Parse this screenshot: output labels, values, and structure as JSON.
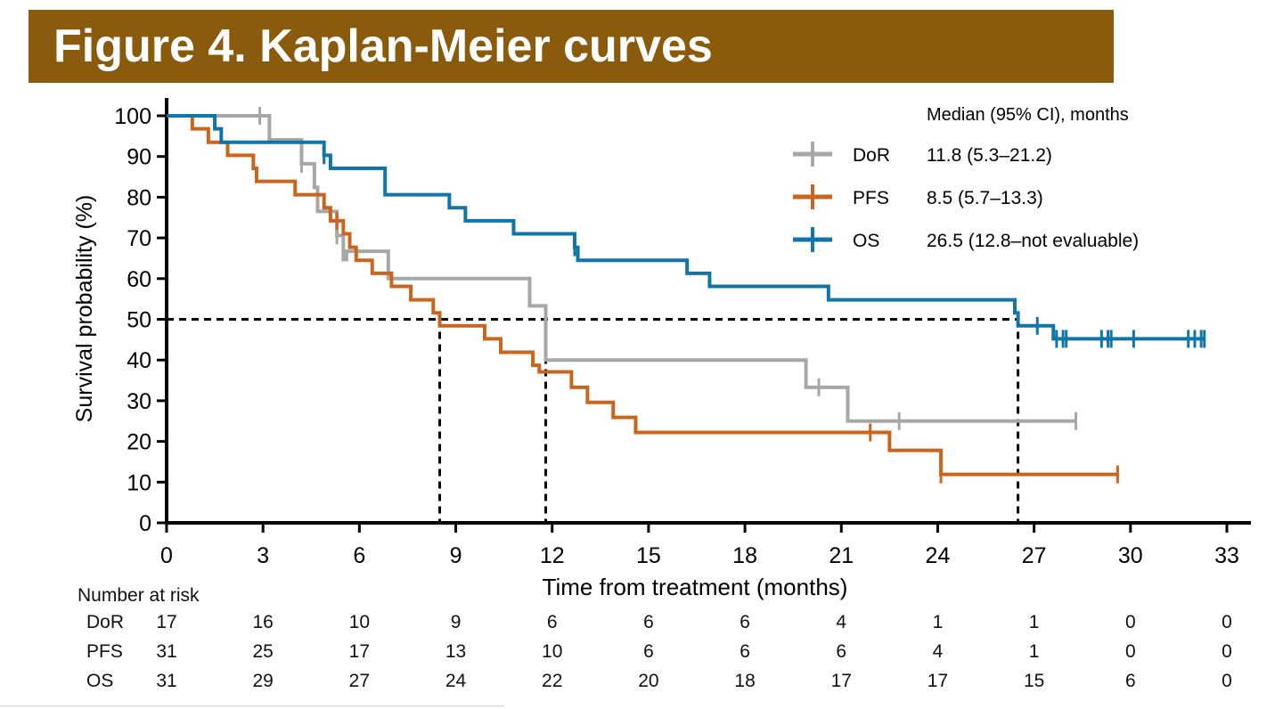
{
  "banner": {
    "title": "Figure 4. Kaplan-Meier curves",
    "color": "#8a5b0c"
  },
  "chart_data": {
    "type": "line",
    "subtype": "kaplan-meier step",
    "xlabel": "Time from treatment (months)",
    "ylabel": "Survival probability (%)",
    "xlim": [
      0,
      33
    ],
    "ylim": [
      0,
      100
    ],
    "xticks": [
      0,
      3,
      6,
      9,
      12,
      15,
      18,
      21,
      24,
      27,
      30,
      33
    ],
    "yticks": [
      0,
      10,
      20,
      30,
      40,
      50,
      60,
      70,
      80,
      90,
      100
    ],
    "grid": false,
    "legend": {
      "placement": "top-right",
      "header": "Median (95% CI), months",
      "entries": [
        {
          "name": "DoR",
          "text": "11.8 (5.3–21.2)"
        },
        {
          "name": "PFS",
          "text": "8.5 (5.7–13.3)"
        },
        {
          "name": "OS",
          "text": "26.5 (12.8–not evaluable)"
        }
      ]
    },
    "median_reference": {
      "y": 50,
      "x_values": [
        8.5,
        11.8,
        26.5
      ]
    },
    "series": [
      {
        "name": "DoR",
        "color": "#a7a7a7",
        "steps": [
          [
            0,
            100
          ],
          [
            3.2,
            94.1
          ],
          [
            4.2,
            88.2
          ],
          [
            4.6,
            82.4
          ],
          [
            4.7,
            76.5
          ],
          [
            5.3,
            70.6
          ],
          [
            5.5,
            64.7
          ],
          [
            5.6,
            66.7
          ],
          [
            6.9,
            60
          ],
          [
            11.3,
            53.3
          ],
          [
            11.8,
            40
          ],
          [
            19.9,
            33.3
          ],
          [
            21.2,
            25
          ],
          [
            28.3,
            25
          ]
        ],
        "censored": [
          2.9,
          4.2,
          5.3,
          20.3,
          22.8,
          28.3
        ]
      },
      {
        "name": "PFS",
        "color": "#c9651c",
        "steps": [
          [
            0,
            100
          ],
          [
            0.8,
            96.8
          ],
          [
            1.3,
            93.5
          ],
          [
            1.9,
            90.3
          ],
          [
            2.7,
            87.1
          ],
          [
            2.8,
            83.9
          ],
          [
            4.0,
            80.6
          ],
          [
            4.9,
            77.4
          ],
          [
            5.1,
            74.2
          ],
          [
            5.5,
            71
          ],
          [
            5.7,
            67.7
          ],
          [
            5.9,
            64.5
          ],
          [
            6.4,
            61.3
          ],
          [
            7.0,
            58.1
          ],
          [
            7.6,
            54.8
          ],
          [
            8.3,
            51.6
          ],
          [
            8.5,
            48.4
          ],
          [
            9.9,
            45.2
          ],
          [
            10.4,
            41.9
          ],
          [
            11.4,
            38.7
          ],
          [
            11.6,
            37.1
          ],
          [
            12.6,
            33.3
          ],
          [
            13.1,
            29.6
          ],
          [
            13.9,
            25.9
          ],
          [
            14.6,
            22.2
          ],
          [
            22.5,
            17.8
          ],
          [
            24.1,
            11.9
          ],
          [
            29.6,
            11.9
          ]
        ],
        "censored": [
          5.3,
          21.9,
          24.1,
          29.6
        ]
      },
      {
        "name": "OS",
        "color": "#1275a8",
        "steps": [
          [
            0,
            100
          ],
          [
            1.5,
            96.8
          ],
          [
            1.7,
            93.5
          ],
          [
            4.9,
            90.3
          ],
          [
            5.1,
            87.1
          ],
          [
            6.8,
            80.6
          ],
          [
            8.8,
            77.4
          ],
          [
            9.3,
            74.2
          ],
          [
            10.8,
            71
          ],
          [
            12.7,
            67.7
          ],
          [
            12.8,
            64.5
          ],
          [
            16.2,
            61.3
          ],
          [
            16.9,
            58.1
          ],
          [
            20.6,
            54.8
          ],
          [
            26.4,
            51.6
          ],
          [
            26.5,
            48.4
          ],
          [
            27.6,
            45.2
          ],
          [
            32.3,
            45.2
          ]
        ],
        "censored": [
          4.9,
          12.7,
          27.1,
          27.7,
          27.9,
          28.0,
          29.1,
          29.3,
          29.4,
          30.1,
          31.8,
          32.0,
          32.2,
          32.3
        ]
      }
    ],
    "risk_table": {
      "heading": "Number at risk",
      "times": [
        0,
        3,
        6,
        9,
        12,
        15,
        18,
        21,
        24,
        27,
        30,
        33
      ],
      "rows": [
        {
          "name": "DoR",
          "values": [
            "17",
            "16",
            "10",
            "9",
            "6",
            "6",
            "6",
            "4",
            "1",
            "1",
            "0",
            "0"
          ]
        },
        {
          "name": "PFS",
          "values": [
            "31",
            "25",
            "17",
            "13",
            "10",
            "6",
            "6",
            "6",
            "4",
            "1",
            "0",
            "0"
          ]
        },
        {
          "name": "OS",
          "values": [
            "31",
            "29",
            "27",
            "24",
            "22",
            "20",
            "18",
            "17",
            "17",
            "15",
            "6",
            "0"
          ]
        }
      ]
    }
  }
}
